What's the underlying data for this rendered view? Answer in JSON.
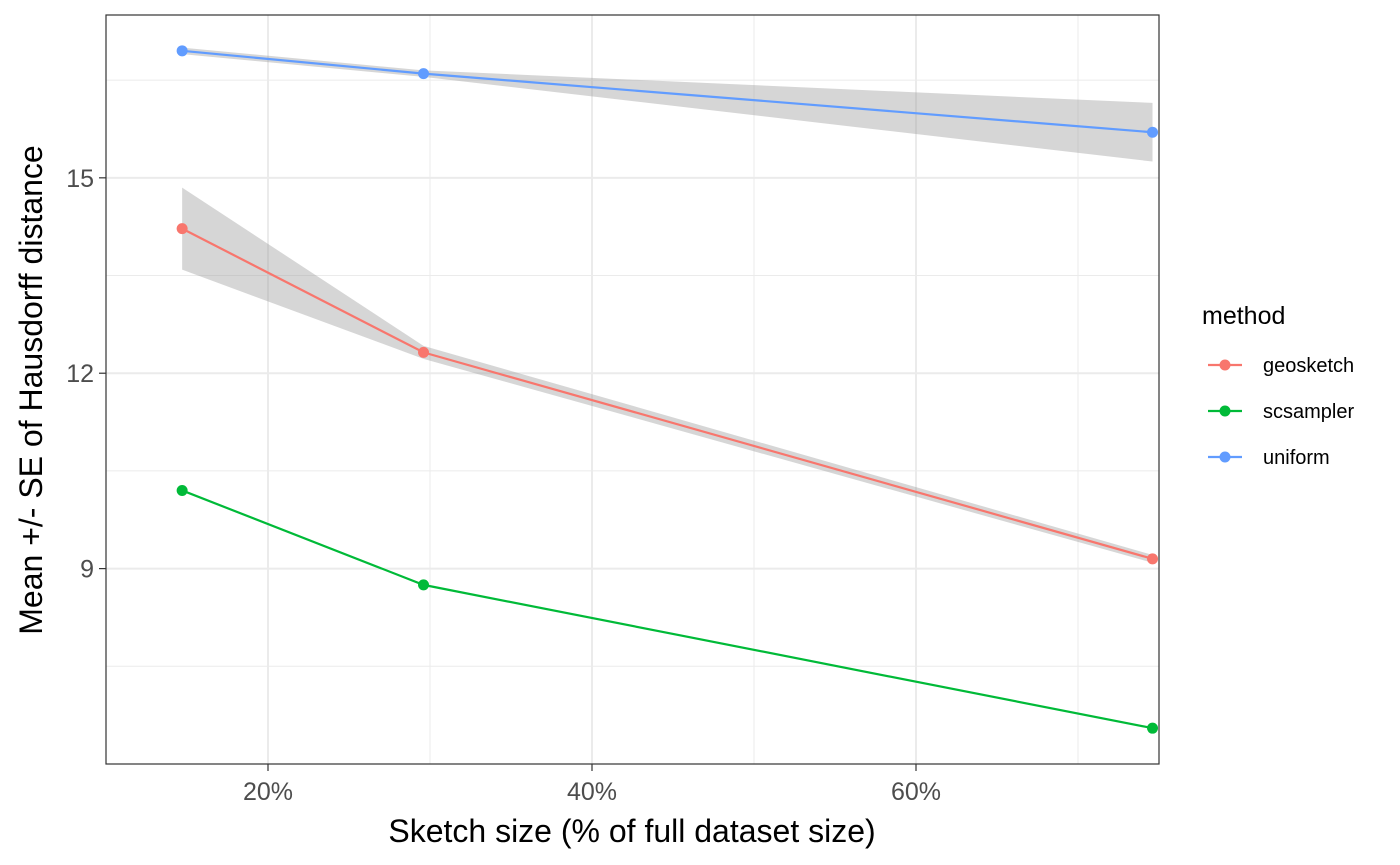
{
  "chart_data": {
    "type": "line",
    "title": "",
    "xlabel": "Sketch size (% of full dataset size)",
    "ylabel": "Mean +/- SE of Hausdorff distance",
    "xlim": [
      10,
      75
    ],
    "ylim": [
      6.0,
      17.5
    ],
    "x_ticks": [
      20,
      40,
      60
    ],
    "x_tick_labels": [
      "20%",
      "40%",
      "60%"
    ],
    "y_ticks": [
      9,
      12,
      15
    ],
    "y_tick_labels": [
      "9",
      "12",
      "15"
    ],
    "grid": true,
    "legend": {
      "title": "method",
      "position": "right"
    },
    "series": [
      {
        "name": "geosketch",
        "color": "#F8766D",
        "x": [
          14.7,
          29.6,
          74.6
        ],
        "y": [
          14.22,
          12.32,
          9.15
        ],
        "lower": [
          13.59,
          12.22,
          9.09
        ],
        "upper": [
          14.85,
          12.42,
          9.21
        ]
      },
      {
        "name": "scsampler",
        "color": "#00BA38",
        "x": [
          14.7,
          29.6,
          74.6
        ],
        "y": [
          10.2,
          8.75,
          6.55
        ],
        "lower": [
          10.2,
          8.75,
          6.55
        ],
        "upper": [
          10.2,
          8.75,
          6.55
        ]
      },
      {
        "name": "uniform",
        "color": "#619CFF",
        "x": [
          14.7,
          29.6,
          74.6
        ],
        "y": [
          16.95,
          16.6,
          15.7
        ],
        "lower": [
          16.9,
          16.55,
          15.25
        ],
        "upper": [
          17.0,
          16.65,
          16.15
        ]
      }
    ]
  }
}
